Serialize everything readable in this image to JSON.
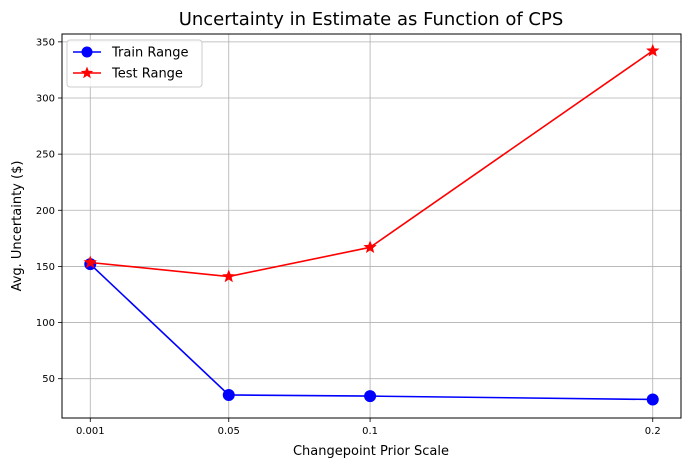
{
  "chart_data": {
    "type": "line",
    "title": "Uncertainty in Estimate as Function of CPS",
    "xlabel": "Changepoint Prior Scale",
    "ylabel": "Avg. Uncertainty ($)",
    "x": [
      0.001,
      0.05,
      0.1,
      0.2
    ],
    "x_tick_labels": [
      "0.001",
      "0.05",
      "0.1",
      "0.2"
    ],
    "xlim": [
      -0.009,
      0.21
    ],
    "ylim": [
      15,
      357
    ],
    "y_ticks": [
      50,
      100,
      150,
      200,
      250,
      300,
      350
    ],
    "grid": true,
    "legend_position": "top-left",
    "series": [
      {
        "name": "Train Range",
        "values": [
          152,
          35.5,
          34.5,
          31.5
        ],
        "color": "#0000ff",
        "marker": "circle"
      },
      {
        "name": "Test Range",
        "values": [
          153.5,
          141,
          167,
          342
        ],
        "color": "#ff0000",
        "marker": "star"
      }
    ]
  }
}
